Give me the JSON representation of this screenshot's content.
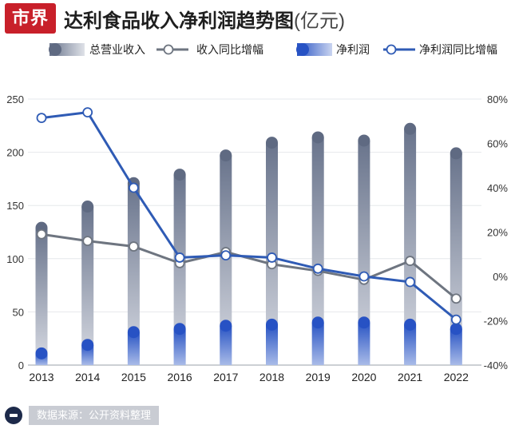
{
  "header": {
    "logo_text": "市界",
    "title": "达利食品收入净利润趋势图",
    "unit": "(亿元)"
  },
  "source_text": "数据来源：公开资料整理",
  "chart_data": {
    "type": "bar",
    "title": "达利食品收入净利润趋势图(亿元)",
    "categories": [
      "2013",
      "2014",
      "2015",
      "2016",
      "2017",
      "2018",
      "2019",
      "2020",
      "2021",
      "2022"
    ],
    "y_left": {
      "range": [
        0,
        250
      ],
      "ticks": [
        "0",
        "50",
        "100",
        "150",
        "200",
        "250"
      ]
    },
    "y_right": {
      "range": [
        -40,
        80
      ],
      "ticks": [
        "-40%",
        "-20%",
        "0%",
        "20%",
        "40%",
        "60%",
        "80%"
      ]
    },
    "grid": true,
    "legend_position": "top",
    "series": [
      {
        "name": "总营业收入",
        "kind": "bar",
        "axis": "left",
        "color": "#6e7a92",
        "values": [
          129,
          149,
          171,
          179,
          197,
          209,
          214,
          211,
          222,
          199
        ]
      },
      {
        "name": "收入同比增幅",
        "kind": "line",
        "axis": "right",
        "color": "#6e7580",
        "values": [
          19,
          16,
          13.5,
          6,
          11,
          5.5,
          2.5,
          -1.5,
          7,
          -10
        ]
      },
      {
        "name": "净利润",
        "kind": "bar",
        "axis": "left",
        "color": "#2c58c6",
        "values": [
          11,
          19,
          31,
          34,
          37,
          38,
          40,
          40,
          38,
          34
        ]
      },
      {
        "name": "净利润同比增幅",
        "kind": "line",
        "axis": "right",
        "color": "#2f5bb5",
        "values": [
          71.5,
          74,
          40,
          8.5,
          9.5,
          8.5,
          3.5,
          0,
          -2.5,
          -19.5
        ]
      }
    ]
  }
}
